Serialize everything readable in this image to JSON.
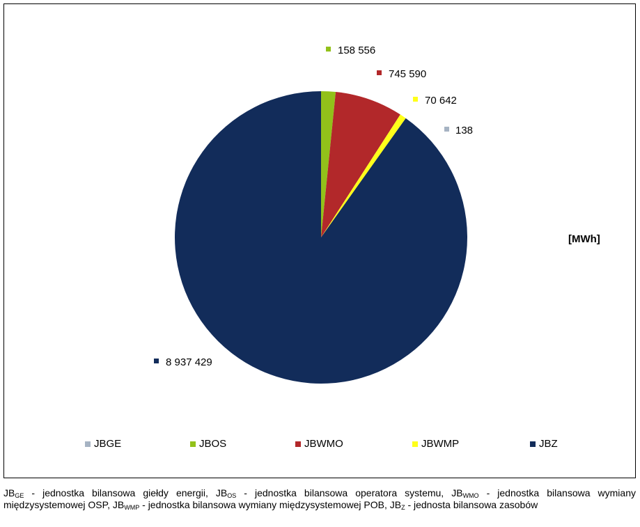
{
  "chart_data": {
    "type": "pie",
    "unit_label": "[MWh]",
    "categories": [
      "JBGE",
      "JBOS",
      "JBWMO",
      "JBWMP",
      "JBZ"
    ],
    "values": [
      138,
      158556,
      745590,
      70642,
      8937429
    ],
    "data_labels": [
      "138",
      "158 556",
      "745 590",
      "70 642",
      "8 937 429"
    ],
    "legend_position": "bottom",
    "colors": {
      "JBGE": "#a6b3c3",
      "JBOS": "#92c11a",
      "JBWMO": "#b2282a",
      "JBWMP": "#ffff1a",
      "JBZ": "#122c5a"
    }
  },
  "caption": {
    "parts": [
      {
        "t": "JB"
      },
      {
        "sub": "GE"
      },
      {
        "t": " -  jednostka bilansowa giełdy energii, JB"
      },
      {
        "sub": "OS"
      },
      {
        "t": " - jednostka bilansowa operatora systemu, JB"
      },
      {
        "sub": "WMO"
      },
      {
        "t": " - jednostka bilansowa wymiany międzysystemowej OSP, JB"
      },
      {
        "sub": "WMP"
      },
      {
        "t": " - jednostka bilansowa wymiany międzysystemowej POB, JB"
      },
      {
        "sub": "Z"
      },
      {
        "t": " - jednosta bilansowa zasobów"
      }
    ]
  }
}
